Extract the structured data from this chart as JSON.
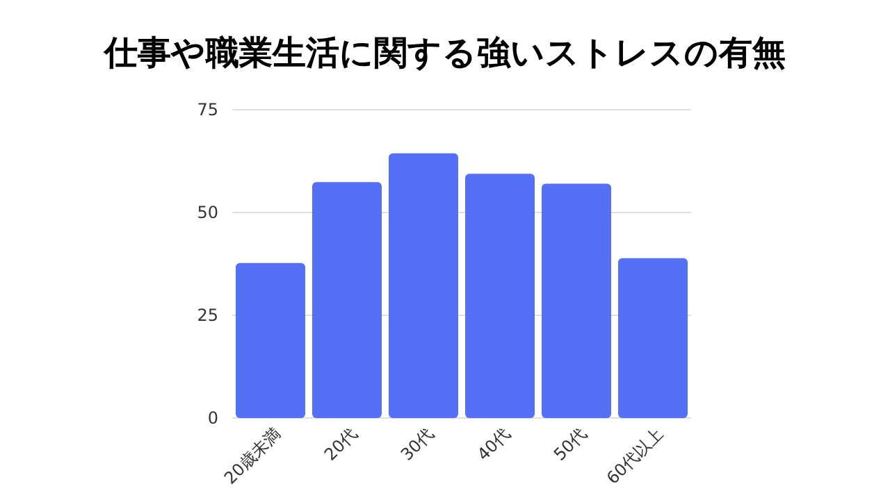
{
  "chart_data": {
    "type": "bar",
    "title": "仕事や職業生活に関する強いストレスの有無",
    "categories": [
      "20歳未満",
      "20代",
      "30代",
      "40代",
      "50代",
      "60代以上"
    ],
    "values": [
      37.7,
      57.4,
      64.4,
      59.4,
      57.0,
      38.9
    ],
    "color": "#5470f5",
    "ylim": [
      0,
      75
    ],
    "yticks": [
      0,
      25,
      50,
      75
    ],
    "grid": "y"
  }
}
